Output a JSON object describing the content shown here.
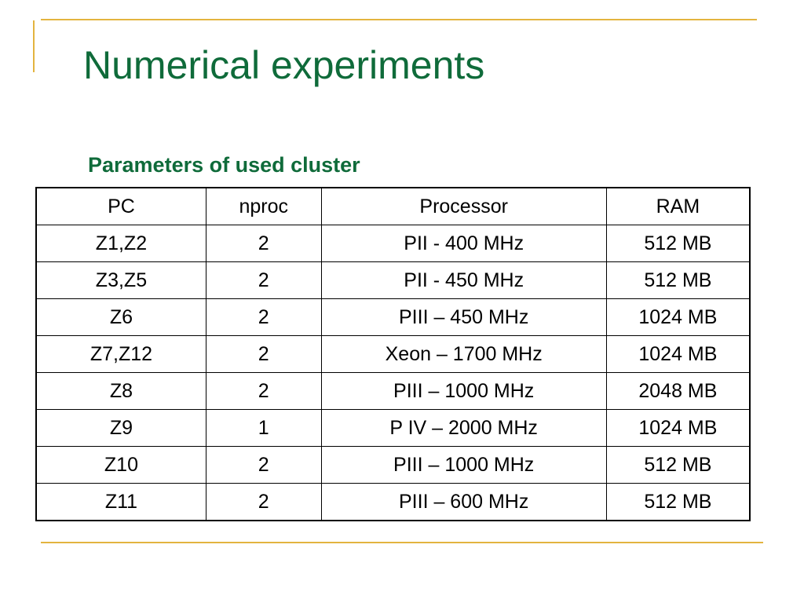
{
  "slide": {
    "title": "Numerical experiments",
    "subtitle": "Parameters of used cluster",
    "accent_color": "#0f6b3a",
    "rule_color": "#e3b43f"
  },
  "table": {
    "headers": [
      "PC",
      "nproc",
      "Processor",
      "RAM"
    ],
    "rows": [
      [
        "Z1,Z2",
        "2",
        "PII - 400 MHz",
        "512 MB"
      ],
      [
        "Z3,Z5",
        "2",
        "PII - 450 MHz",
        "512 MB"
      ],
      [
        "Z6",
        "2",
        "PIII – 450 MHz",
        "1024 MB"
      ],
      [
        "Z7,Z12",
        "2",
        "Xeon – 1700 MHz",
        "1024 MB"
      ],
      [
        "Z8",
        "2",
        "PIII – 1000 MHz",
        "2048 MB"
      ],
      [
        "Z9",
        "1",
        "P IV – 2000 MHz",
        "1024 MB"
      ],
      [
        "Z10",
        "2",
        "PIII – 1000 MHz",
        "512 MB"
      ],
      [
        "Z11",
        "2",
        "PIII – 600 MHz",
        "512 MB"
      ]
    ]
  }
}
